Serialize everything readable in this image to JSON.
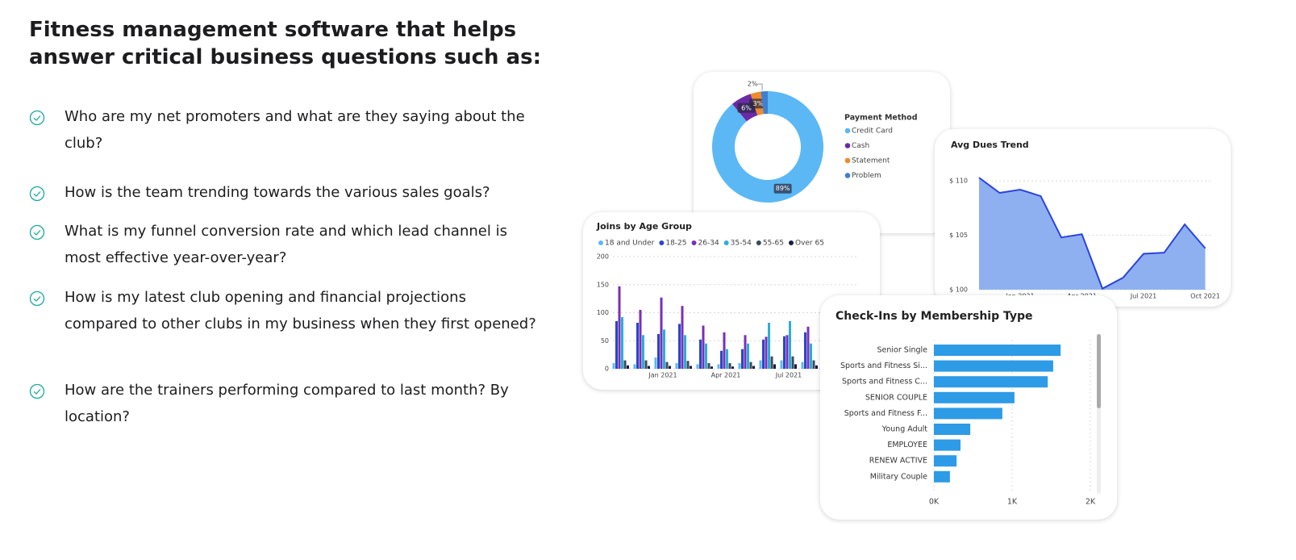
{
  "heading": "Fitness management software that helps answer critical business questions such as:",
  "questions": [
    "Who are my net promoters and what are they saying about the club?",
    "How is the team trending towards the various sales goals?",
    "What is my funnel conversion rate and which lead channel is most effective year-over-year?",
    "How is my latest club opening and financial projections compared to other clubs in my business when they first opened?",
    "How are the trainers performing compared to last month? By location?"
  ],
  "chart_data": [
    {
      "type": "pie",
      "donut": true,
      "legend_title": "Payment Method",
      "categories": [
        "Credit Card",
        "Cash",
        "Statement",
        "Problem"
      ],
      "values": [
        89,
        6,
        3,
        2
      ],
      "value_labels": [
        "89%",
        "6%",
        "3%",
        "2%"
      ],
      "colors": [
        "#5bb8f5",
        "#6a2aa8",
        "#f08a2c",
        "#3f7fd0"
      ]
    },
    {
      "type": "bar",
      "title": "Joins by Age Group",
      "categories": [
        null,
        null,
        "Jan 2021",
        null,
        null,
        "Apr 2021",
        null,
        null,
        "Jul 2021",
        null
      ],
      "series": [
        {
          "name": "18 and Under",
          "color": "#5bb8f5",
          "values": [
            10,
            8,
            20,
            10,
            8,
            8,
            10,
            15,
            15,
            12
          ]
        },
        {
          "name": "18-25",
          "color": "#2a46c8",
          "values": [
            85,
            82,
            62,
            80,
            52,
            32,
            35,
            52,
            58,
            65
          ]
        },
        {
          "name": "26-34",
          "color": "#7a2fb8",
          "values": [
            147,
            105,
            127,
            112,
            77,
            65,
            60,
            57,
            60,
            75
          ]
        },
        {
          "name": "35-54",
          "color": "#2ab0d6",
          "values": [
            92,
            60,
            70,
            60,
            45,
            35,
            45,
            82,
            85,
            45
          ]
        },
        {
          "name": "55-65",
          "color": "#3a4a5a",
          "values": [
            15,
            15,
            12,
            14,
            10,
            10,
            12,
            22,
            22,
            15
          ]
        },
        {
          "name": "Over 65",
          "color": "#1a1a4a",
          "values": [
            6,
            5,
            5,
            5,
            4,
            4,
            5,
            8,
            8,
            6
          ]
        }
      ],
      "ylim": [
        0,
        200
      ],
      "yticks": [
        0,
        50,
        100,
        150,
        200
      ],
      "grid": true
    },
    {
      "type": "area",
      "title": "Avg Dues Trend",
      "categories": [
        null,
        null,
        "Jan 2021",
        null,
        null,
        "Apr 2021",
        null,
        null,
        "Jul 2021",
        null,
        null,
        "Oct 2021"
      ],
      "values": [
        110.3,
        108.9,
        109.2,
        108.6,
        104.8,
        105.1,
        100.1,
        101.1,
        103.3,
        103.4,
        106.0,
        103.8
      ],
      "color": "#2a44dd",
      "fill": "#8fb0f0",
      "ylim": [
        100,
        111.5
      ],
      "yticks": [
        {
          "value": 100,
          "label": "$ 100"
        },
        {
          "value": 105,
          "label": "$ 105"
        },
        {
          "value": 110,
          "label": "$ 110"
        }
      ],
      "grid": true
    },
    {
      "type": "hbar",
      "title": "Check-Ins by Membership Type",
      "categories": [
        "Senior Single",
        "Sports and Fitness Si...",
        "Sports and Fitness C...",
        "SENIOR COUPLE",
        "Sports and Fitness F...",
        "Young Adult",
        "EMPLOYEE",
        "RENEW ACTIVE",
        "Military Couple"
      ],
      "values": [
        1620,
        1525,
        1455,
        1030,
        875,
        465,
        340,
        290,
        205
      ],
      "color": "#2d9be6",
      "xlim": [
        0,
        2050
      ],
      "xticks": [
        {
          "value": 0,
          "label": "0K"
        },
        {
          "value": 1000,
          "label": "1K"
        },
        {
          "value": 2000,
          "label": "2K"
        }
      ],
      "grid": true
    }
  ]
}
